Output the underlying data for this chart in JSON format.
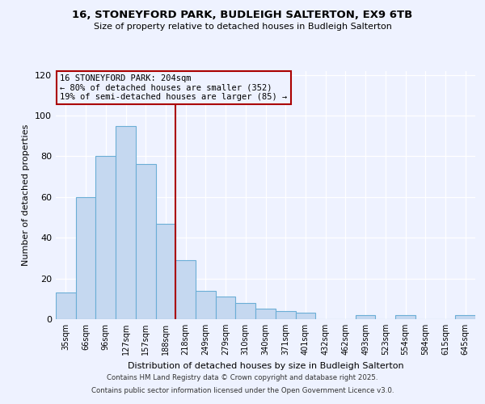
{
  "title_line1": "16, STONEYFORD PARK, BUDLEIGH SALTERTON, EX9 6TB",
  "title_line2": "Size of property relative to detached houses in Budleigh Salterton",
  "xlabel": "Distribution of detached houses by size in Budleigh Salterton",
  "ylabel": "Number of detached properties",
  "bar_labels": [
    "35sqm",
    "66sqm",
    "96sqm",
    "127sqm",
    "157sqm",
    "188sqm",
    "218sqm",
    "249sqm",
    "279sqm",
    "310sqm",
    "340sqm",
    "371sqm",
    "401sqm",
    "432sqm",
    "462sqm",
    "493sqm",
    "523sqm",
    "554sqm",
    "584sqm",
    "615sqm",
    "645sqm"
  ],
  "bar_values": [
    13,
    60,
    80,
    95,
    76,
    47,
    29,
    14,
    11,
    8,
    5,
    4,
    3,
    0,
    0,
    2,
    0,
    2,
    0,
    0,
    2
  ],
  "bar_color": "#c5d8f0",
  "bar_edgecolor": "#6baed6",
  "vline_x": 5.5,
  "vline_color": "#aa0000",
  "annotation_title": "16 STONEYFORD PARK: 204sqm",
  "annotation_line1": "← 80% of detached houses are smaller (352)",
  "annotation_line2": "19% of semi-detached houses are larger (85) →",
  "ylim": [
    0,
    122
  ],
  "yticks": [
    0,
    20,
    40,
    60,
    80,
    100,
    120
  ],
  "background_color": "#eef2ff",
  "plot_bg_color": "#eef2ff",
  "footer_line1": "Contains HM Land Registry data © Crown copyright and database right 2025.",
  "footer_line2": "Contains public sector information licensed under the Open Government Licence v3.0."
}
